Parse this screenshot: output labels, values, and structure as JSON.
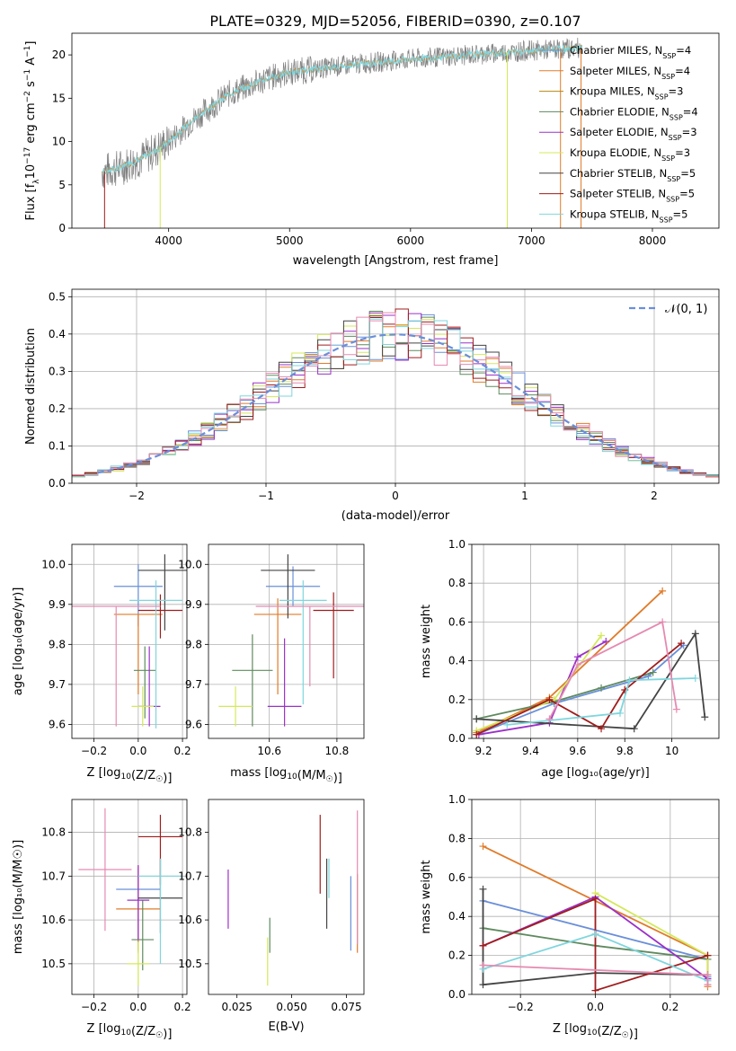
{
  "figure": {
    "title": "PLATE=0329, MJD=52056, FIBERID=0390, z=0.107"
  },
  "legend_colors": {
    "Chabrier MILES": "#6a8fd9",
    "Salpeter MILES": "#e07b2a",
    "Kroupa MILES": "#b8860b",
    "Chabrier ELODIE": "#5f8a5f",
    "Salpeter ELODIE": "#9b30c8",
    "Kroupa ELODIE": "#d4e85a",
    "Chabrier STELIB": "#444444",
    "Salpeter STELIB": "#a01c1c",
    "Kroupa STELIB": "#7fd6dd",
    "Kroupa ELODIE alt": "#e58ab0"
  },
  "chart_data": [
    {
      "id": "spectrum",
      "type": "line",
      "xlabel": "wavelength [Angstrom, rest frame]",
      "ylabel_main": "Flux [f",
      "ylabel_sub1": "λ",
      "ylabel_mid": "10",
      "ylabel_sup1": "−17",
      "ylabel_mid2": " erg cm",
      "ylabel_sup2": "−2",
      "ylabel_mid3": " s",
      "ylabel_sup3": "−1",
      "ylabel_mid4": " A",
      "ylabel_sup4": "−1",
      "ylabel_end": "]",
      "xlim": [
        3200,
        8550
      ],
      "ylim": [
        0,
        22.5
      ],
      "xticks": [
        4000,
        5000,
        6000,
        7000,
        8000
      ],
      "yticks": [
        0,
        5,
        10,
        15,
        20
      ],
      "data_color": "#808080",
      "data_trend": {
        "x": [
          3450,
          3600,
          3800,
          4000,
          4200,
          4500,
          4800,
          5000,
          5300,
          5600,
          6000,
          6500,
          7000,
          7400
        ],
        "y": [
          6.5,
          7.0,
          8.2,
          10.0,
          12.5,
          15.5,
          17.2,
          18.0,
          18.5,
          19.0,
          19.5,
          20.0,
          20.5,
          20.8
        ]
      },
      "legend_prefix": "N",
      "legend_sub": "SSP",
      "legend": [
        {
          "name": "Chabrier MILES",
          "n": "4"
        },
        {
          "name": "Salpeter MILES",
          "n": "4"
        },
        {
          "name": "Kroupa MILES",
          "n": "3"
        },
        {
          "name": "Chabrier ELODIE",
          "n": "4"
        },
        {
          "name": "Salpeter ELODIE",
          "n": "3"
        },
        {
          "name": "Kroupa ELODIE",
          "n": "3"
        },
        {
          "name": "Chabrier STELIB",
          "n": "5"
        },
        {
          "name": "Salpeter STELIB",
          "n": "5"
        },
        {
          "name": "Kroupa STELIB",
          "n": "5"
        }
      ]
    },
    {
      "id": "residuals",
      "type": "bar",
      "xlabel": "(data-model)/error",
      "ylabel": "Normed distribution",
      "xlim": [
        -2.5,
        2.5
      ],
      "ylim": [
        0,
        0.52
      ],
      "xticks": [
        -2,
        -1,
        0,
        1,
        2
      ],
      "xticklabels": [
        "−2",
        "−1",
        "0",
        "1",
        "2"
      ],
      "yticks": [
        0.0,
        0.1,
        0.2,
        0.3,
        0.4,
        0.5
      ],
      "bin_width": 0.1,
      "bin_start": -2.5,
      "legend_label": "𝒩(0, 1)",
      "gauss_color": "#6a8fd9"
    },
    {
      "id": "age_vs_Z",
      "type": "scatter",
      "xlabel": "Z [log",
      "xlabel_sub": "10",
      "xlabel_mid": "(Z/Z",
      "xlabel_sub2": "☉",
      "xlabel_end": ")]",
      "ylabel": "age  [log₁₀(age/yr)]",
      "xlim": [
        -0.3,
        0.22
      ],
      "ylim": [
        9.565,
        10.05
      ],
      "xticks": [
        -0.2,
        0.0,
        0.2
      ],
      "xticklabels": [
        "−0.2",
        "0.0",
        "0.2"
      ],
      "yticks": [
        9.6,
        9.7,
        9.8,
        9.9,
        10.0
      ],
      "points": [
        {
          "s": "Chabrier MILES",
          "x": 0.0,
          "y": 9.945,
          "xerr": 0.11,
          "yerr": [
            0.1,
            0.055
          ]
        },
        {
          "s": "Salpeter MILES",
          "x": 0.0,
          "y": 9.875,
          "xerr": 0.11,
          "yerr": [
            0.2,
            0.0
          ]
        },
        {
          "s": "Chabrier ELODIE",
          "x": 0.03,
          "y": 9.735,
          "xerr": 0.05,
          "yerr": [
            0.12,
            0.06
          ]
        },
        {
          "s": "Salpeter ELODIE",
          "x": 0.05,
          "y": 9.645,
          "xerr": 0.05,
          "yerr": [
            0.05,
            0.15
          ]
        },
        {
          "s": "Kroupa ELODIE",
          "x": 0.02,
          "y": 9.645,
          "xerr": 0.05,
          "yerr": [
            0.05,
            0.05
          ]
        },
        {
          "s": "Chabrier STELIB",
          "x": 0.12,
          "y": 9.985,
          "xerr": 0.12,
          "yerr": [
            0.15,
            0.04
          ]
        },
        {
          "s": "Salpeter STELIB",
          "x": 0.1,
          "y": 9.885,
          "xerr": 0.1,
          "yerr": [
            0.07,
            0.04
          ]
        },
        {
          "s": "Kroupa STELIB",
          "x": 0.08,
          "y": 9.91,
          "xerr": 0.12,
          "yerr": [
            0.32,
            0.05
          ]
        },
        {
          "s": "Kroupa ELODIE alt",
          "x": -0.1,
          "y": 9.895,
          "xerr": 0.2,
          "yerr": [
            0.3,
            0.0
          ]
        }
      ]
    },
    {
      "id": "age_vs_mass",
      "type": "scatter",
      "xlabel": "mass [log",
      "xlabel_sub": "10",
      "xlabel_mid": "(M/M",
      "xlabel_sub2": "☉",
      "xlabel_end": ")]",
      "xlim": [
        10.42,
        10.88
      ],
      "ylim": [
        9.565,
        10.05
      ],
      "xticks": [
        10.6,
        10.8
      ],
      "xticklabels": [
        "10.6",
        "10.8"
      ],
      "yticks": [
        9.6,
        9.7,
        9.8,
        9.9,
        10.0
      ],
      "points": [
        {
          "s": "Chabrier MILES",
          "x": 10.67,
          "y": 9.945,
          "xerr": 0.08,
          "yerr": [
            0.05,
            0.05
          ]
        },
        {
          "s": "Salpeter MILES",
          "x": 10.625,
          "y": 9.875,
          "xerr": 0.07,
          "yerr": [
            0.2,
            0.04
          ]
        },
        {
          "s": "Chabrier ELODIE",
          "x": 10.55,
          "y": 9.735,
          "xerr": 0.06,
          "yerr": [
            0.14,
            0.09
          ]
        },
        {
          "s": "Salpeter ELODIE",
          "x": 10.645,
          "y": 9.645,
          "xerr": 0.05,
          "yerr": [
            0.05,
            0.17
          ]
        },
        {
          "s": "Kroupa ELODIE",
          "x": 10.5,
          "y": 9.645,
          "xerr": 0.05,
          "yerr": [
            0.05,
            0.05
          ]
        },
        {
          "s": "Chabrier STELIB",
          "x": 10.655,
          "y": 9.985,
          "xerr": 0.08,
          "yerr": [
            0.12,
            0.04
          ]
        },
        {
          "s": "Salpeter STELIB",
          "x": 10.79,
          "y": 9.885,
          "xerr": 0.06,
          "yerr": [
            0.17,
            0.045
          ]
        },
        {
          "s": "Kroupa STELIB",
          "x": 10.7,
          "y": 9.91,
          "xerr": 0.07,
          "yerr": [
            0.26,
            0.05
          ]
        },
        {
          "s": "Kroupa ELODIE alt",
          "x": 10.72,
          "y": 9.895,
          "xerr": 0.16,
          "yerr": [
            0.2,
            0.0
          ]
        }
      ]
    },
    {
      "id": "weight_vs_age",
      "type": "line",
      "xlabel": "age  [log₁₀(age/yr)]",
      "ylabel": "mass weight",
      "xlim": [
        9.15,
        10.2
      ],
      "ylim": [
        0,
        1.0
      ],
      "xticks": [
        9.2,
        9.4,
        9.6,
        9.8,
        10.0
      ],
      "yticks": [
        0.0,
        0.2,
        0.4,
        0.6,
        0.8,
        1.0
      ],
      "series": [
        {
          "s": "Chabrier MILES",
          "x": [
            9.17,
            9.5,
            9.9,
            10.05
          ],
          "y": [
            0.02,
            0.18,
            0.32,
            0.48
          ]
        },
        {
          "s": "Salpeter MILES",
          "x": [
            9.17,
            9.48,
            9.96
          ],
          "y": [
            0.03,
            0.21,
            0.76
          ]
        },
        {
          "s": "Chabrier ELODIE",
          "x": [
            9.17,
            9.5,
            9.7,
            9.92
          ],
          "y": [
            0.1,
            0.19,
            0.26,
            0.34
          ]
        },
        {
          "s": "Salpeter ELODIE",
          "x": [
            9.18,
            9.48,
            9.6,
            9.72
          ],
          "y": [
            0.02,
            0.08,
            0.42,
            0.5
          ]
        },
        {
          "s": "Kroupa ELODIE",
          "x": [
            9.17,
            9.5,
            9.7
          ],
          "y": [
            0.04,
            0.2,
            0.53
          ]
        },
        {
          "s": "Chabrier STELIB",
          "x": [
            9.17,
            9.84,
            10.1,
            10.14
          ],
          "y": [
            0.1,
            0.05,
            0.54,
            0.11
          ]
        },
        {
          "s": "Salpeter STELIB",
          "x": [
            9.17,
            9.48,
            9.7,
            9.8,
            10.04
          ],
          "y": [
            0.02,
            0.2,
            0.05,
            0.25,
            0.49
          ]
        },
        {
          "s": "Kroupa STELIB",
          "x": [
            9.3,
            9.78,
            9.82,
            10.1
          ],
          "y": [
            0.07,
            0.13,
            0.3,
            0.31
          ]
        },
        {
          "s": "Kroupa ELODIE alt",
          "x": [
            9.48,
            9.6,
            9.96,
            10.02
          ],
          "y": [
            0.1,
            0.38,
            0.6,
            0.15
          ]
        }
      ]
    },
    {
      "id": "mass_vs_Z",
      "type": "scatter",
      "xlabel": "Z [log",
      "xlabel_sub": "10",
      "xlabel_mid": "(Z/Z",
      "xlabel_sub2": "☉",
      "xlabel_end": ")]",
      "ylabel": "mass [log₁₀(M/M☉)]",
      "xlim": [
        -0.3,
        0.22
      ],
      "ylim": [
        10.43,
        10.875
      ],
      "xticks": [
        -0.2,
        0.0,
        0.2
      ],
      "xticklabels": [
        "−0.2",
        "0.0",
        "0.2"
      ],
      "yticks": [
        10.5,
        10.6,
        10.7,
        10.8
      ],
      "points": [
        {
          "s": "Chabrier MILES",
          "x": 0.0,
          "y": 10.67,
          "xerr": 0.1,
          "yerr": [
            0.14,
            0.05
          ]
        },
        {
          "s": "Salpeter MILES",
          "x": 0.0,
          "y": 10.625,
          "xerr": 0.1,
          "yerr": [
            0.1,
            0.1
          ]
        },
        {
          "s": "Chabrier ELODIE",
          "x": 0.02,
          "y": 10.555,
          "xerr": 0.05,
          "yerr": [
            0.07,
            0.09
          ]
        },
        {
          "s": "Salpeter ELODIE",
          "x": 0.0,
          "y": 10.645,
          "xerr": 0.05,
          "yerr": [
            0.09,
            0.08
          ]
        },
        {
          "s": "Kroupa ELODIE",
          "x": 0.0,
          "y": 10.5,
          "xerr": 0.05,
          "yerr": [
            0.05,
            0.05
          ]
        },
        {
          "s": "Chabrier STELIB",
          "x": 0.1,
          "y": 10.65,
          "xerr": 0.1,
          "yerr": [
            0.08,
            0.09
          ]
        },
        {
          "s": "Salpeter STELIB",
          "x": 0.1,
          "y": 10.79,
          "xerr": 0.1,
          "yerr": [
            0.11,
            0.05
          ]
        },
        {
          "s": "Kroupa STELIB",
          "x": 0.1,
          "y": 10.7,
          "xerr": 0.1,
          "yerr": [
            0.2,
            0.04
          ]
        },
        {
          "s": "Kroupa ELODIE alt",
          "x": -0.15,
          "y": 10.715,
          "xerr": 0.12,
          "yerr": [
            0.14,
            0.14
          ]
        }
      ]
    },
    {
      "id": "mass_vs_ebv",
      "type": "scatter",
      "xlabel": "E(B-V)",
      "xlim": [
        0.012,
        0.083
      ],
      "ylim": [
        10.43,
        10.875
      ],
      "xticks": [
        0.025,
        0.05,
        0.075
      ],
      "xticklabels": [
        "0.025",
        "0.050",
        "0.075"
      ],
      "yticks": [
        10.5,
        10.6,
        10.7,
        10.8
      ],
      "points": [
        {
          "s": "Salpeter ELODIE",
          "x": 0.021,
          "y": 10.645,
          "xerr": 0,
          "yerr": [
            0.065,
            0.07
          ]
        },
        {
          "s": "Kroupa ELODIE",
          "x": 0.039,
          "y": 10.5,
          "xerr": 0,
          "yerr": [
            0.05,
            0.06
          ]
        },
        {
          "s": "Chabrier ELODIE",
          "x": 0.04,
          "y": 10.555,
          "xerr": 0,
          "yerr": [
            0.03,
            0.05
          ]
        },
        {
          "s": "Salpeter STELIB",
          "x": 0.063,
          "y": 10.79,
          "xerr": 0,
          "yerr": [
            0.13,
            0.05
          ]
        },
        {
          "s": "Chabrier STELIB",
          "x": 0.066,
          "y": 10.65,
          "xerr": 0,
          "yerr": [
            0.07,
            0.09
          ]
        },
        {
          "s": "Kroupa STELIB",
          "x": 0.067,
          "y": 10.7,
          "xerr": 0,
          "yerr": [
            0.05,
            0.04
          ]
        },
        {
          "s": "Chabrier MILES",
          "x": 0.077,
          "y": 10.67,
          "xerr": 0,
          "yerr": [
            0.14,
            0.03
          ]
        },
        {
          "s": "Salpeter MILES",
          "x": 0.08,
          "y": 10.625,
          "xerr": 0,
          "yerr": [
            0.1,
            0.08
          ]
        },
        {
          "s": "Kroupa ELODIE alt",
          "x": 0.08,
          "y": 10.715,
          "xerr": 0,
          "yerr": [
            0.17,
            0.135
          ]
        }
      ]
    },
    {
      "id": "weight_vs_Z",
      "type": "line",
      "xlabel": "Z [log",
      "xlabel_sub": "10",
      "xlabel_mid": "(Z/Z",
      "xlabel_sub2": "☉",
      "xlabel_end": ")]",
      "ylabel": "mass weight",
      "xlim": [
        -0.33,
        0.33
      ],
      "ylim": [
        0,
        1.0
      ],
      "xticks": [
        -0.2,
        0.0,
        0.2
      ],
      "xticklabels": [
        "−0.2",
        "0.0",
        "0.2"
      ],
      "yticks": [
        0.0,
        0.2,
        0.4,
        0.6,
        0.8,
        1.0
      ],
      "series": [
        {
          "s": "Chabrier MILES",
          "x": [
            -0.3,
            0.3,
            0.3
          ],
          "y": [
            0.48,
            0.18,
            0.09
          ]
        },
        {
          "s": "Salpeter MILES",
          "x": [
            -0.3,
            0.3,
            0.3
          ],
          "y": [
            0.76,
            0.2,
            0.04
          ]
        },
        {
          "s": "Chabrier ELODIE",
          "x": [
            -0.3,
            0.0,
            0.3
          ],
          "y": [
            0.34,
            0.25,
            0.18
          ]
        },
        {
          "s": "Salpeter ELODIE",
          "x": [
            -0.3,
            0.0,
            0.3
          ],
          "y": [
            0.25,
            0.5,
            0.08
          ]
        },
        {
          "s": "Kroupa ELODIE",
          "x": [
            0.0,
            0.3,
            0.3
          ],
          "y": [
            0.52,
            0.2,
            0.05
          ]
        },
        {
          "s": "Chabrier STELIB",
          "x": [
            -0.3,
            -0.3,
            0.0,
            0.3
          ],
          "y": [
            0.54,
            0.05,
            0.11,
            0.1
          ]
        },
        {
          "s": "Salpeter STELIB",
          "x": [
            -0.3,
            0.0,
            0.0,
            0.3
          ],
          "y": [
            0.25,
            0.49,
            0.02,
            0.2
          ]
        },
        {
          "s": "Kroupa STELIB",
          "x": [
            -0.3,
            0.0,
            0.3
          ],
          "y": [
            0.13,
            0.31,
            0.07
          ]
        },
        {
          "s": "Kroupa ELODIE alt",
          "x": [
            -0.3,
            0.3,
            0.3
          ],
          "y": [
            0.15,
            0.1,
            0.05
          ]
        }
      ]
    }
  ]
}
